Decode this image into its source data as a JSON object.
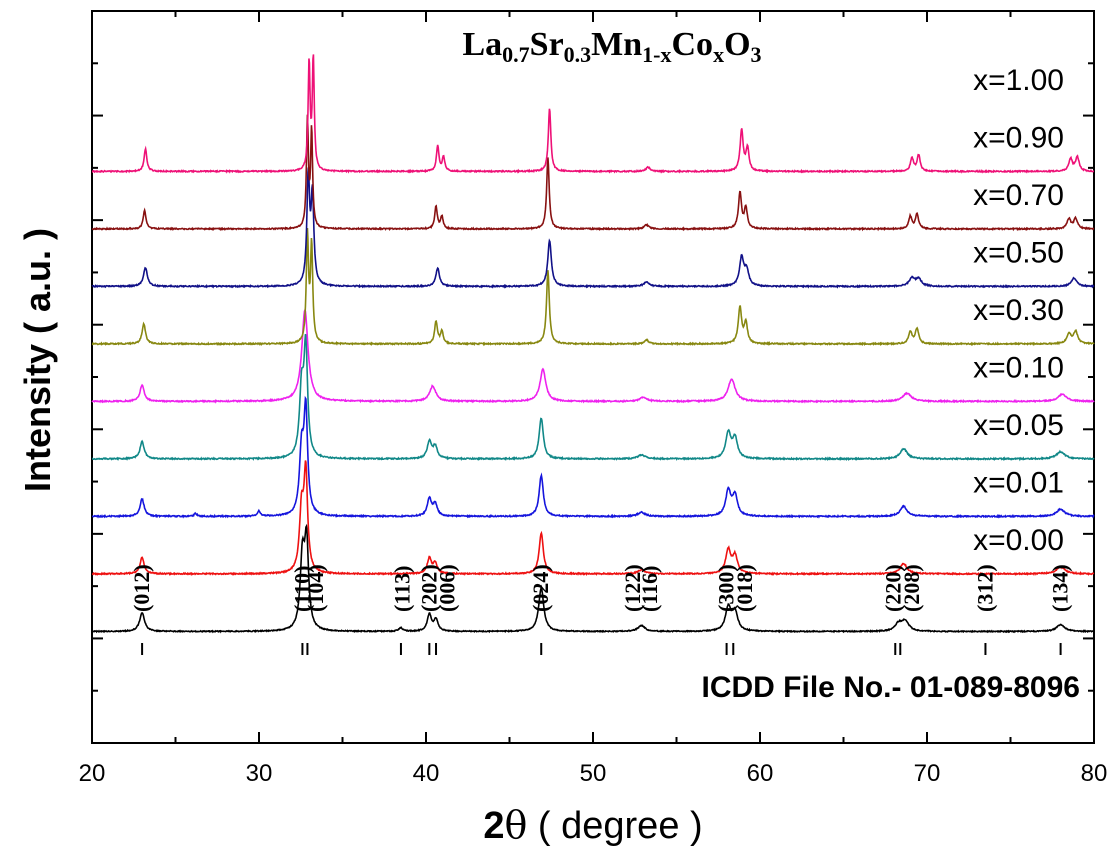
{
  "chart_data": {
    "type": "line",
    "title": {
      "parts": [
        {
          "text": "La",
          "sub": false
        },
        {
          "text": "0.7",
          "sub": true
        },
        {
          "text": "Sr",
          "sub": false
        },
        {
          "text": "0.3",
          "sub": true
        },
        {
          "text": "Mn",
          "sub": false
        },
        {
          "text": "1-x",
          "sub": true
        },
        {
          "text": "Co",
          "sub": false
        },
        {
          "text": "x",
          "sub": true
        },
        {
          "text": "O",
          "sub": false
        },
        {
          "text": "3",
          "sub": true
        }
      ]
    },
    "xlabel": {
      "bold": "2",
      "symbol": "θ",
      "rest": " ( degree )"
    },
    "ylabel": "Intensity ( a.u. )",
    "xlim": [
      20,
      80
    ],
    "xticks": [
      20,
      30,
      40,
      50,
      60,
      70,
      80
    ],
    "x_minor_step": 5,
    "stacked_offset_plot": true,
    "reference_label": "ICDD File No.- 01-089-8096",
    "reference_lines": [
      23.0,
      32.6,
      32.9,
      38.5,
      40.2,
      40.6,
      46.9,
      58.0,
      58.4,
      68.1,
      68.4,
      73.5,
      78.0
    ],
    "hkl_labels": [
      {
        "label": "(012)",
        "x": 23.0
      },
      {
        "label": "(110)",
        "x": 32.6
      },
      {
        "label": "(104)",
        "x": 33.4
      },
      {
        "label": "(113)",
        "x": 38.6
      },
      {
        "label": "(202)",
        "x": 40.2
      },
      {
        "label": "(006)",
        "x": 41.3
      },
      {
        "label": "(024)",
        "x": 46.9
      },
      {
        "label": "(122)",
        "x": 52.4
      },
      {
        "label": "(116)",
        "x": 53.4
      },
      {
        "label": "(300)",
        "x": 58.0
      },
      {
        "label": "(018)",
        "x": 59.1
      },
      {
        "label": "(220)",
        "x": 68.0
      },
      {
        "label": "(208)",
        "x": 69.1
      },
      {
        "label": "(312)",
        "x": 73.5
      },
      {
        "label": "(134)",
        "x": 78.0
      }
    ],
    "series": [
      {
        "name": "x=0.00",
        "color": "#000000",
        "peaks": [
          [
            23.0,
            0.22,
            0.18
          ],
          [
            32.6,
            0.85,
            0.16
          ],
          [
            32.85,
            1.0,
            0.14
          ],
          [
            38.5,
            0.04,
            0.15
          ],
          [
            40.2,
            0.2,
            0.15
          ],
          [
            40.6,
            0.14,
            0.15
          ],
          [
            46.9,
            0.52,
            0.18
          ],
          [
            52.9,
            0.07,
            0.25
          ],
          [
            58.1,
            0.28,
            0.2
          ],
          [
            58.5,
            0.22,
            0.2
          ],
          [
            68.3,
            0.09,
            0.25
          ],
          [
            68.7,
            0.12,
            0.25
          ],
          [
            78.0,
            0.08,
            0.3
          ]
        ]
      },
      {
        "name": "x=0.01",
        "color": "#ee1111",
        "peaks": [
          [
            23.0,
            0.16,
            0.15
          ],
          [
            32.55,
            0.6,
            0.15
          ],
          [
            32.8,
            0.95,
            0.13
          ],
          [
            40.2,
            0.15,
            0.15
          ],
          [
            40.55,
            0.1,
            0.15
          ],
          [
            46.9,
            0.4,
            0.15
          ],
          [
            52.9,
            0.04,
            0.25
          ],
          [
            58.1,
            0.23,
            0.18
          ],
          [
            58.5,
            0.17,
            0.18
          ],
          [
            68.6,
            0.1,
            0.25
          ],
          [
            78.0,
            0.07,
            0.3
          ]
        ]
      },
      {
        "name": "x=0.05",
        "color": "#1515dd",
        "peaks": [
          [
            23.0,
            0.17,
            0.15
          ],
          [
            26.2,
            0.03,
            0.1
          ],
          [
            30.0,
            0.05,
            0.1
          ],
          [
            32.55,
            0.62,
            0.15
          ],
          [
            32.8,
            1.0,
            0.13
          ],
          [
            40.2,
            0.17,
            0.15
          ],
          [
            40.55,
            0.12,
            0.15
          ],
          [
            46.9,
            0.4,
            0.15
          ],
          [
            52.9,
            0.04,
            0.25
          ],
          [
            58.1,
            0.25,
            0.18
          ],
          [
            58.5,
            0.2,
            0.18
          ],
          [
            68.6,
            0.1,
            0.25
          ],
          [
            78.0,
            0.07,
            0.3
          ]
        ]
      },
      {
        "name": "x=0.10",
        "color": "#118888",
        "peaks": [
          [
            23.0,
            0.17,
            0.15
          ],
          [
            32.55,
            0.65,
            0.15
          ],
          [
            32.8,
            1.05,
            0.13
          ],
          [
            40.2,
            0.17,
            0.15
          ],
          [
            40.55,
            0.12,
            0.15
          ],
          [
            46.9,
            0.4,
            0.15
          ],
          [
            52.9,
            0.04,
            0.25
          ],
          [
            58.1,
            0.25,
            0.18
          ],
          [
            58.5,
            0.2,
            0.18
          ],
          [
            68.6,
            0.1,
            0.25
          ],
          [
            78.0,
            0.07,
            0.3
          ]
        ]
      },
      {
        "name": "x=0.30",
        "color": "#ee22ee",
        "peaks": [
          [
            23.0,
            0.16,
            0.15
          ],
          [
            32.75,
            0.9,
            0.22
          ],
          [
            40.4,
            0.15,
            0.22
          ],
          [
            47.0,
            0.32,
            0.2
          ],
          [
            53.0,
            0.04,
            0.25
          ],
          [
            58.3,
            0.22,
            0.25
          ],
          [
            68.8,
            0.08,
            0.3
          ],
          [
            78.1,
            0.07,
            0.3
          ]
        ]
      },
      {
        "name": "x=0.50",
        "color": "#888811",
        "peaks": [
          [
            23.1,
            0.2,
            0.12
          ],
          [
            32.9,
            1.05,
            0.08
          ],
          [
            33.15,
            0.95,
            0.08
          ],
          [
            40.6,
            0.22,
            0.1
          ],
          [
            40.95,
            0.12,
            0.1
          ],
          [
            47.3,
            0.72,
            0.1
          ],
          [
            53.2,
            0.04,
            0.15
          ],
          [
            58.8,
            0.35,
            0.12
          ],
          [
            59.15,
            0.2,
            0.12
          ],
          [
            69.0,
            0.12,
            0.12
          ],
          [
            69.4,
            0.15,
            0.12
          ],
          [
            78.5,
            0.1,
            0.15
          ],
          [
            78.9,
            0.12,
            0.15
          ]
        ]
      },
      {
        "name": "x=0.70",
        "color": "#111188",
        "peaks": [
          [
            23.2,
            0.18,
            0.14
          ],
          [
            32.95,
            1.05,
            0.1
          ],
          [
            33.2,
            0.85,
            0.1
          ],
          [
            40.7,
            0.18,
            0.13
          ],
          [
            47.4,
            0.45,
            0.13
          ],
          [
            53.2,
            0.04,
            0.2
          ],
          [
            58.9,
            0.28,
            0.15
          ],
          [
            59.2,
            0.15,
            0.15
          ],
          [
            69.1,
            0.08,
            0.2
          ],
          [
            69.5,
            0.07,
            0.2
          ],
          [
            78.8,
            0.08,
            0.2
          ]
        ]
      },
      {
        "name": "x=0.90",
        "color": "#881111",
        "peaks": [
          [
            23.15,
            0.18,
            0.1
          ],
          [
            32.9,
            1.05,
            0.07
          ],
          [
            33.15,
            0.95,
            0.07
          ],
          [
            40.6,
            0.22,
            0.09
          ],
          [
            40.95,
            0.12,
            0.09
          ],
          [
            47.3,
            0.7,
            0.09
          ],
          [
            53.2,
            0.04,
            0.15
          ],
          [
            58.8,
            0.35,
            0.11
          ],
          [
            59.15,
            0.2,
            0.11
          ],
          [
            69.0,
            0.12,
            0.11
          ],
          [
            69.4,
            0.15,
            0.11
          ],
          [
            78.5,
            0.1,
            0.13
          ],
          [
            78.9,
            0.1,
            0.13
          ]
        ]
      },
      {
        "name": "x=1.00",
        "color": "#ee1177",
        "peaks": [
          [
            23.2,
            0.22,
            0.1
          ],
          [
            33.0,
            1.05,
            0.07
          ],
          [
            33.25,
            1.1,
            0.07
          ],
          [
            40.7,
            0.25,
            0.09
          ],
          [
            41.05,
            0.14,
            0.09
          ],
          [
            47.4,
            0.62,
            0.09
          ],
          [
            53.3,
            0.04,
            0.15
          ],
          [
            58.9,
            0.4,
            0.11
          ],
          [
            59.25,
            0.22,
            0.11
          ],
          [
            69.1,
            0.13,
            0.11
          ],
          [
            69.5,
            0.16,
            0.11
          ],
          [
            78.6,
            0.12,
            0.13
          ],
          [
            79.0,
            0.14,
            0.13
          ]
        ]
      }
    ]
  }
}
